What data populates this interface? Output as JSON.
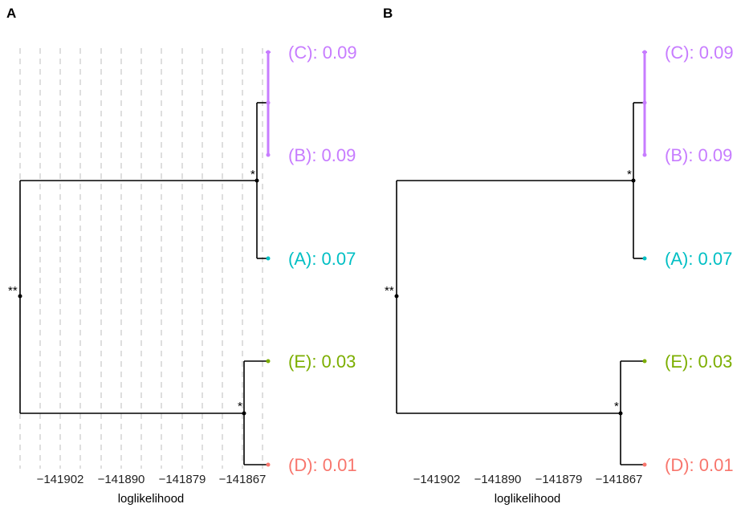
{
  "chart_data": [
    {
      "type": "tree",
      "panel_label": "A",
      "grid": true,
      "xlabel": "loglikelihood",
      "x_ticks": [
        "−141902",
        "−141890",
        "−141879",
        "−141867"
      ],
      "tips": [
        {
          "label": "(C): 0.09",
          "color": "#c77cff"
        },
        {
          "label": "(B): 0.09",
          "color": "#c77cff"
        },
        {
          "label": "(A): 0.07",
          "color": "#00bfc4"
        },
        {
          "label": "(E): 0.03",
          "color": "#7cae00"
        },
        {
          "label": "(D): 0.01",
          "color": "#f8766d"
        }
      ],
      "node_marks": [
        {
          "node": "root",
          "text": "**"
        },
        {
          "node": "A-B-C",
          "text": "*"
        },
        {
          "node": "D-E",
          "text": "*"
        }
      ]
    },
    {
      "type": "tree",
      "panel_label": "B",
      "grid": false,
      "xlabel": "loglikelihood",
      "x_ticks": [
        "−141902",
        "−141890",
        "−141879",
        "−141867"
      ],
      "tips": [
        {
          "label": "(C): 0.09",
          "color": "#c77cff"
        },
        {
          "label": "(B): 0.09",
          "color": "#c77cff"
        },
        {
          "label": "(A): 0.07",
          "color": "#00bfc4"
        },
        {
          "label": "(E): 0.03",
          "color": "#7cae00"
        },
        {
          "label": "(D): 0.01",
          "color": "#f8766d"
        }
      ],
      "node_marks": [
        {
          "node": "root",
          "text": "**"
        },
        {
          "node": "A-B-C",
          "text": "*"
        },
        {
          "node": "D-E",
          "text": "*"
        }
      ]
    }
  ]
}
